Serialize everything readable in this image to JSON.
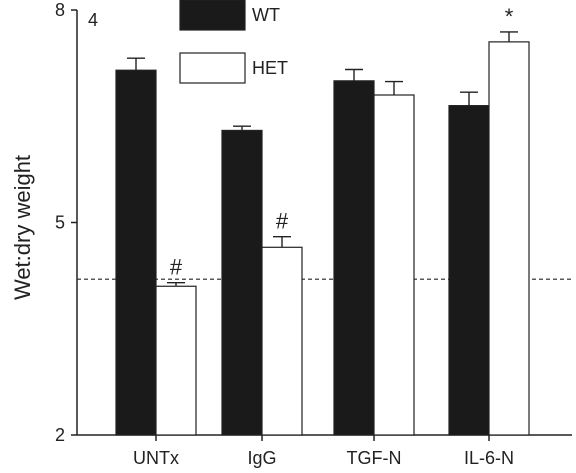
{
  "chart_data": {
    "type": "bar",
    "panel_label": "4",
    "ylabel": "Wet:dry weight",
    "ylim": [
      2,
      8
    ],
    "yticks": [
      "2",
      "5",
      "8"
    ],
    "categories": [
      "UNTx",
      "IgG",
      "TGF-N",
      "IL-6-N"
    ],
    "series": [
      {
        "name": "WT",
        "color": "#1a1a1a",
        "values": [
          7.15,
          6.3,
          7.0,
          6.65
        ],
        "errors": [
          0.17,
          0.06,
          0.16,
          0.19
        ],
        "annotations": [
          "",
          "",
          "",
          ""
        ]
      },
      {
        "name": "HET",
        "color": "#ffffff",
        "values": [
          4.1,
          4.65,
          6.8,
          7.55
        ],
        "errors": [
          0.05,
          0.15,
          0.19,
          0.14
        ],
        "annotations": [
          "#",
          "#",
          "",
          "*"
        ]
      }
    ],
    "reference_line": 4.2,
    "legend_position": "top-center"
  }
}
